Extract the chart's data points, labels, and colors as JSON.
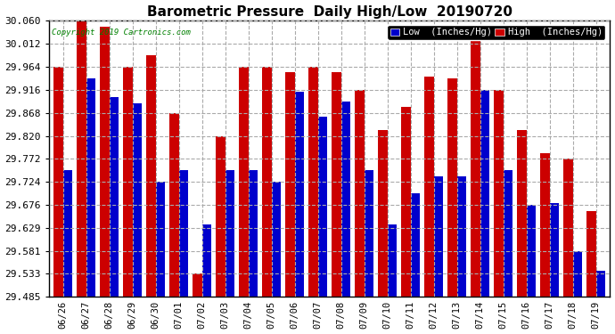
{
  "title": "Barometric Pressure  Daily High/Low  20190720",
  "copyright": "Copyright 2019 Cartronics.com",
  "legend_low": "Low  (Inches/Hg)",
  "legend_high": "High  (Inches/Hg)",
  "background_color": "#ffffff",
  "plot_bg_color": "#ffffff",
  "grid_color": "#aaaaaa",
  "low_color": "#0000cc",
  "high_color": "#cc0000",
  "legend_low_bg": "#0000cc",
  "legend_high_bg": "#cc0000",
  "ylim": [
    29.485,
    30.06
  ],
  "yticks": [
    29.485,
    29.533,
    29.581,
    29.629,
    29.676,
    29.724,
    29.772,
    29.82,
    29.868,
    29.916,
    29.964,
    30.012,
    30.06
  ],
  "dates": [
    "06/26",
    "06/27",
    "06/28",
    "06/29",
    "06/30",
    "07/01",
    "07/02",
    "07/03",
    "07/04",
    "07/05",
    "07/06",
    "07/07",
    "07/08",
    "07/09",
    "07/10",
    "07/11",
    "07/12",
    "07/13",
    "07/14",
    "07/15",
    "07/16",
    "07/17",
    "07/18",
    "07/19"
  ],
  "high_values": [
    29.964,
    30.06,
    30.048,
    29.964,
    29.988,
    29.868,
    29.533,
    29.82,
    29.964,
    29.964,
    29.952,
    29.964,
    29.952,
    29.916,
    29.832,
    29.88,
    29.944,
    29.94,
    30.02,
    29.916,
    29.832,
    29.784,
    29.772,
    29.664
  ],
  "low_values": [
    29.748,
    29.94,
    29.9,
    29.888,
    29.724,
    29.748,
    29.636,
    29.748,
    29.748,
    29.724,
    29.912,
    29.86,
    29.892,
    29.748,
    29.636,
    29.7,
    29.736,
    29.736,
    29.916,
    29.748,
    29.676,
    29.68,
    29.58,
    29.54
  ]
}
